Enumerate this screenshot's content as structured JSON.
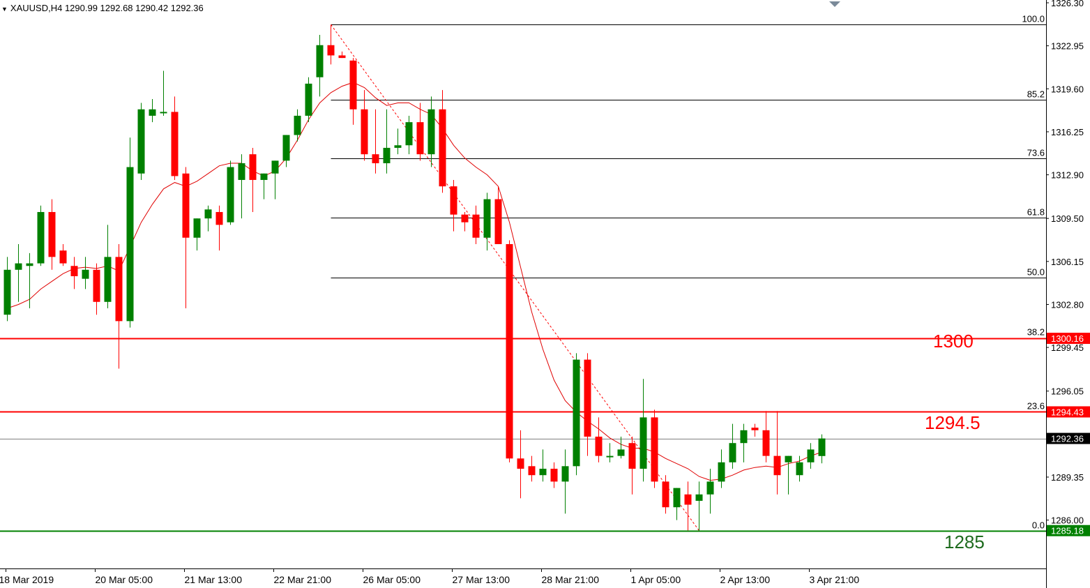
{
  "header": {
    "symbol_line": "XAUUSD,H4  1290.99 1292.68 1290.42 1292.36"
  },
  "colors": {
    "bull": "#008000",
    "bear": "#ff0000",
    "ma": "#e00000",
    "level": "#ff0000",
    "support": "#008000",
    "fib": "#000000"
  },
  "annotations": {
    "level_1300": "1300",
    "level_1294": "1294.5",
    "level_1285": "1285"
  },
  "chart_data": {
    "type": "candlestick",
    "symbol": "XAUUSD",
    "timeframe": "H4",
    "ohlc_header": {
      "open": 1290.99,
      "high": 1292.68,
      "low": 1290.42,
      "close": 1292.36
    },
    "ylim": [
      1283.1,
      1326.3
    ],
    "y_ticks": [
      "1326.30",
      "1322.95",
      "1319.60",
      "1316.25",
      "1312.90",
      "1309.50",
      "1306.15",
      "1302.80",
      "1299.45",
      "1296.05",
      "1289.35",
      "1286.00"
    ],
    "x_ticks": [
      "18 Mar 2019",
      "20 Mar 05:00",
      "21 Mar 13:00",
      "22 Mar 21:00",
      "26 Mar 05:00",
      "27 Mar 13:00",
      "28 Mar 21:00",
      "1 Apr 05:00",
      "2 Apr 13:00",
      "3 Apr 21:00"
    ],
    "x_tick_index": [
      0,
      8,
      16,
      24,
      32,
      40,
      48,
      56,
      64,
      72
    ],
    "price_tags": [
      {
        "value": "1300.16",
        "price": 1300.16,
        "bg": "#ff0000",
        "fg": "#ffffff"
      },
      {
        "value": "1294.43",
        "price": 1294.43,
        "bg": "#ff0000",
        "fg": "#ffffff"
      },
      {
        "value": "1292.36",
        "price": 1292.36,
        "bg": "#000000",
        "fg": "#ffffff"
      },
      {
        "value": "1285.18",
        "price": 1285.18,
        "bg": "#008000",
        "fg": "#ffffff"
      }
    ],
    "horizontal_levels": [
      {
        "price": 1300.16,
        "color": "#ff0000"
      },
      {
        "price": 1294.43,
        "color": "#ff0000"
      },
      {
        "price": 1285.18,
        "color": "#008000"
      },
      {
        "price": 1292.36,
        "color": "#808080"
      }
    ],
    "fibonacci": {
      "high": 1324.6,
      "low": 1285.18,
      "start_index": 29,
      "levels": [
        {
          "label": "100.0",
          "price": 1324.6
        },
        {
          "label": "85.2",
          "price": 1318.77
        },
        {
          "label": "73.6",
          "price": 1314.19
        },
        {
          "label": "61.8",
          "price": 1309.54
        },
        {
          "label": "50.0",
          "price": 1304.89
        },
        {
          "label": "38.2",
          "price": 1300.24
        },
        {
          "label": "23.6",
          "price": 1294.48
        },
        {
          "label": "0.0",
          "price": 1285.18
        }
      ]
    },
    "candles": [
      {
        "o": 1302.0,
        "h": 1306.5,
        "l": 1301.5,
        "c": 1305.5
      },
      {
        "o": 1305.5,
        "h": 1307.5,
        "l": 1303.0,
        "c": 1306.0
      },
      {
        "o": 1305.8,
        "h": 1306.8,
        "l": 1302.5,
        "c": 1306.0
      },
      {
        "o": 1306.0,
        "h": 1310.5,
        "l": 1305.8,
        "c": 1310.0
      },
      {
        "o": 1310.0,
        "h": 1311.0,
        "l": 1305.5,
        "c": 1306.5
      },
      {
        "o": 1307.0,
        "h": 1307.5,
        "l": 1305.8,
        "c": 1306.0
      },
      {
        "o": 1305.8,
        "h": 1306.5,
        "l": 1304.0,
        "c": 1305.0
      },
      {
        "o": 1304.8,
        "h": 1306.5,
        "l": 1304.0,
        "c": 1305.5
      },
      {
        "o": 1305.5,
        "h": 1306.0,
        "l": 1302.0,
        "c": 1303.0
      },
      {
        "o": 1303.0,
        "h": 1309.0,
        "l": 1302.5,
        "c": 1306.5
      },
      {
        "o": 1306.5,
        "h": 1307.5,
        "l": 1297.8,
        "c": 1301.5
      },
      {
        "o": 1301.5,
        "h": 1315.8,
        "l": 1301.0,
        "c": 1313.5
      },
      {
        "o": 1313.0,
        "h": 1318.5,
        "l": 1312.5,
        "c": 1318.0
      },
      {
        "o": 1317.5,
        "h": 1318.8,
        "l": 1317.0,
        "c": 1318.0
      },
      {
        "o": 1317.8,
        "h": 1321.0,
        "l": 1317.5,
        "c": 1317.8
      },
      {
        "o": 1317.8,
        "h": 1319.0,
        "l": 1312.5,
        "c": 1312.8
      },
      {
        "o": 1313.0,
        "h": 1313.5,
        "l": 1302.5,
        "c": 1308.0
      },
      {
        "o": 1308.0,
        "h": 1309.5,
        "l": 1307.0,
        "c": 1309.5
      },
      {
        "o": 1309.5,
        "h": 1310.5,
        "l": 1308.5,
        "c": 1310.2
      },
      {
        "o": 1310.0,
        "h": 1310.5,
        "l": 1307.0,
        "c": 1309.0
      },
      {
        "o": 1309.2,
        "h": 1314.0,
        "l": 1309.0,
        "c": 1313.5
      },
      {
        "o": 1312.5,
        "h": 1314.5,
        "l": 1309.5,
        "c": 1313.8
      },
      {
        "o": 1314.5,
        "h": 1315.0,
        "l": 1310.0,
        "c": 1312.5
      },
      {
        "o": 1312.5,
        "h": 1313.0,
        "l": 1311.0,
        "c": 1313.0
      },
      {
        "o": 1313.0,
        "h": 1314.0,
        "l": 1311.0,
        "c": 1314.0
      },
      {
        "o": 1314.0,
        "h": 1316.0,
        "l": 1313.5,
        "c": 1316.0
      },
      {
        "o": 1316.0,
        "h": 1318.0,
        "l": 1315.5,
        "c": 1317.5
      },
      {
        "o": 1317.5,
        "h": 1320.5,
        "l": 1317.0,
        "c": 1320.0
      },
      {
        "o": 1320.5,
        "h": 1323.8,
        "l": 1319.0,
        "c": 1323.0
      },
      {
        "o": 1323.0,
        "h": 1324.6,
        "l": 1321.5,
        "c": 1322.2
      },
      {
        "o": 1322.2,
        "h": 1322.5,
        "l": 1322.0,
        "c": 1322.0
      },
      {
        "o": 1321.8,
        "h": 1322.0,
        "l": 1316.8,
        "c": 1318.0
      },
      {
        "o": 1318.0,
        "h": 1319.5,
        "l": 1314.0,
        "c": 1314.5
      },
      {
        "o": 1314.5,
        "h": 1318.0,
        "l": 1313.0,
        "c": 1313.8
      },
      {
        "o": 1313.8,
        "h": 1318.0,
        "l": 1313.0,
        "c": 1315.0
      },
      {
        "o": 1315.0,
        "h": 1316.5,
        "l": 1314.5,
        "c": 1315.2
      },
      {
        "o": 1315.2,
        "h": 1317.5,
        "l": 1314.5,
        "c": 1317.0
      },
      {
        "o": 1317.0,
        "h": 1318.5,
        "l": 1314.0,
        "c": 1314.5
      },
      {
        "o": 1314.5,
        "h": 1319.0,
        "l": 1313.5,
        "c": 1318.0
      },
      {
        "o": 1318.0,
        "h": 1319.5,
        "l": 1311.5,
        "c": 1312.0
      },
      {
        "o": 1312.0,
        "h": 1312.5,
        "l": 1308.5,
        "c": 1309.8
      },
      {
        "o": 1309.8,
        "h": 1310.0,
        "l": 1308.5,
        "c": 1309.2
      },
      {
        "o": 1309.8,
        "h": 1310.5,
        "l": 1307.5,
        "c": 1308.0
      },
      {
        "o": 1308.0,
        "h": 1311.5,
        "l": 1307.0,
        "c": 1311.0
      },
      {
        "o": 1311.0,
        "h": 1312.0,
        "l": 1307.5,
        "c": 1307.5
      },
      {
        "o": 1307.5,
        "h": 1307.8,
        "l": 1290.5,
        "c": 1290.8
      },
      {
        "o": 1290.8,
        "h": 1293.0,
        "l": 1287.7,
        "c": 1290.0
      },
      {
        "o": 1290.2,
        "h": 1291.0,
        "l": 1289.0,
        "c": 1289.5
      },
      {
        "o": 1289.5,
        "h": 1291.5,
        "l": 1289.0,
        "c": 1290.0
      },
      {
        "o": 1290.0,
        "h": 1290.5,
        "l": 1288.5,
        "c": 1289.0
      },
      {
        "o": 1289.0,
        "h": 1291.5,
        "l": 1286.5,
        "c": 1290.2
      },
      {
        "o": 1290.2,
        "h": 1299.0,
        "l": 1289.5,
        "c": 1298.5
      },
      {
        "o": 1298.5,
        "h": 1299.0,
        "l": 1291.0,
        "c": 1292.5
      },
      {
        "o": 1292.5,
        "h": 1294.0,
        "l": 1290.5,
        "c": 1291.0
      },
      {
        "o": 1291.0,
        "h": 1292.0,
        "l": 1290.5,
        "c": 1291.0
      },
      {
        "o": 1291.0,
        "h": 1292.5,
        "l": 1290.8,
        "c": 1291.5
      },
      {
        "o": 1292.0,
        "h": 1292.5,
        "l": 1288.0,
        "c": 1290.0
      },
      {
        "o": 1290.0,
        "h": 1297.0,
        "l": 1289.0,
        "c": 1294.0
      },
      {
        "o": 1294.0,
        "h": 1294.6,
        "l": 1288.5,
        "c": 1289.0
      },
      {
        "o": 1289.0,
        "h": 1289.5,
        "l": 1286.5,
        "c": 1287.0
      },
      {
        "o": 1287.0,
        "h": 1288.5,
        "l": 1286.0,
        "c": 1288.5
      },
      {
        "o": 1288.0,
        "h": 1289.0,
        "l": 1285.2,
        "c": 1287.2
      },
      {
        "o": 1287.5,
        "h": 1289.0,
        "l": 1285.2,
        "c": 1288.0
      },
      {
        "o": 1288.0,
        "h": 1290.0,
        "l": 1286.5,
        "c": 1289.0
      },
      {
        "o": 1289.0,
        "h": 1291.5,
        "l": 1288.5,
        "c": 1290.5
      },
      {
        "o": 1290.5,
        "h": 1293.5,
        "l": 1290.0,
        "c": 1292.0
      },
      {
        "o": 1292.0,
        "h": 1293.5,
        "l": 1290.5,
        "c": 1293.0
      },
      {
        "o": 1293.2,
        "h": 1293.5,
        "l": 1292.5,
        "c": 1293.0
      },
      {
        "o": 1293.0,
        "h": 1294.5,
        "l": 1290.5,
        "c": 1291.0
      },
      {
        "o": 1291.0,
        "h": 1294.5,
        "l": 1288.0,
        "c": 1289.5
      },
      {
        "o": 1290.5,
        "h": 1291.0,
        "l": 1288.0,
        "c": 1291.0
      },
      {
        "o": 1289.5,
        "h": 1291.0,
        "l": 1289.0,
        "c": 1290.5
      },
      {
        "o": 1290.5,
        "h": 1292.0,
        "l": 1290.0,
        "c": 1291.5
      },
      {
        "o": 1290.99,
        "h": 1292.68,
        "l": 1290.42,
        "c": 1292.36
      }
    ],
    "moving_average": [
      1302.5,
      1302.8,
      1303.2,
      1304.0,
      1304.6,
      1305.2,
      1305.6,
      1305.7,
      1305.6,
      1305.8,
      1305.4,
      1307.3,
      1309.2,
      1310.6,
      1311.8,
      1312.3,
      1312.0,
      1312.4,
      1313.0,
      1313.6,
      1313.8,
      1313.8,
      1313.2,
      1312.8,
      1313.2,
      1314.2,
      1315.6,
      1317.2,
      1318.5,
      1319.3,
      1319.8,
      1320.1,
      1319.7,
      1318.9,
      1318.3,
      1318.5,
      1318.5,
      1318.0,
      1317.6,
      1316.5,
      1315.2,
      1314.2,
      1313.5,
      1312.9,
      1312.0,
      1309.2,
      1305.7,
      1302.2,
      1299.3,
      1296.9,
      1295.3,
      1294.4,
      1293.7,
      1293.1,
      1292.4,
      1291.9,
      1291.6,
      1291.6,
      1291.3,
      1290.8,
      1290.4,
      1290.0,
      1289.4,
      1289.1,
      1289.2,
      1289.5,
      1289.9,
      1290.1,
      1290.2,
      1290.1,
      1290.4,
      1290.6,
      1291.0,
      1291.3
    ]
  }
}
